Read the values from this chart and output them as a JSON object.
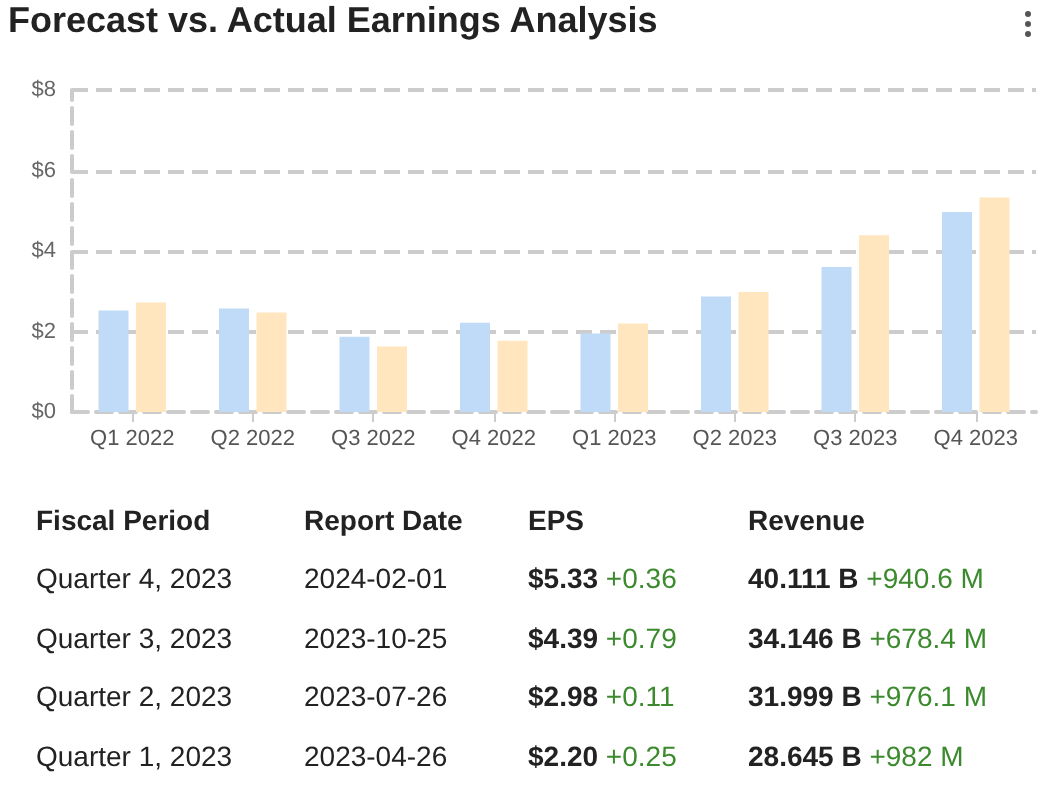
{
  "chart_data": {
    "type": "bar",
    "title": "Forecast vs. Actual Earnings Analysis",
    "categories": [
      "Q1 2022",
      "Q2 2022",
      "Q3 2022",
      "Q4 2022",
      "Q1 2023",
      "Q2 2023",
      "Q3 2023",
      "Q4 2023"
    ],
    "series": [
      {
        "color": "#bfdbf7",
        "values": [
          2.52,
          2.57,
          1.87,
          2.22,
          1.95,
          2.87,
          3.6,
          4.97
        ]
      },
      {
        "color": "#ffe6bf",
        "values": [
          2.72,
          2.47,
          1.63,
          1.77,
          2.2,
          2.98,
          4.39,
          5.33
        ]
      }
    ],
    "ylim": [
      0,
      8
    ],
    "yticks": [
      {
        "value": 0,
        "label": "$0"
      },
      {
        "value": 2,
        "label": "$2"
      },
      {
        "value": 4,
        "label": "$4"
      },
      {
        "value": 6,
        "label": "$6"
      },
      {
        "value": 8,
        "label": "$8"
      }
    ],
    "grid": "y",
    "annotations": [
      "Fiscal Period",
      "Report Date",
      "EPS",
      "Revenue",
      "Quarter 4, 2023",
      "2024-02-01",
      "$5.33",
      "+0.36",
      "40.111 B",
      "+940.6 M",
      "Quarter 3, 2023",
      "2023-10-25",
      "$4.39",
      "+0.79",
      "34.146 B",
      "+678.4 M",
      "Quarter 2, 2023",
      "2023-07-26",
      "$2.98",
      "+0.11",
      "31.999 B",
      "+976.1 M",
      "Quarter 1, 2023",
      "2023-04-26",
      "$2.20",
      "+0.25",
      "28.645 B",
      "+982 M"
    ]
  }
}
